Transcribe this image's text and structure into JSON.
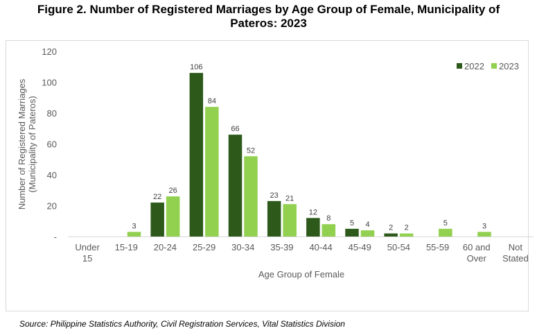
{
  "title_line1": "Figure 2.  Number of Registered Marriages by Age Group of Female, Municipality of",
  "title_line2": "Pateros: 2023",
  "source": "Source: Philippine Statistics Authority, Civil Registration Services, Vital Statistics Division",
  "chart_data": {
    "type": "bar",
    "title": "Figure 2.  Number of Registered Marriages by Age Group of Female, Municipality of Pateros: 2023",
    "xlabel": "Age Group of Female",
    "ylabel_lines": [
      "Number of Registered Marriages",
      "(Municipality of Pateros)"
    ],
    "ylim": [
      0,
      120
    ],
    "yticks": [
      0,
      20,
      40,
      60,
      80,
      100,
      120
    ],
    "ytick_labels": [
      "-",
      "20",
      "40",
      "60",
      "80",
      "100",
      "120"
    ],
    "grid": false,
    "legend": "top-right",
    "categories": [
      [
        "Under",
        "15"
      ],
      [
        "15-19"
      ],
      [
        "20-24"
      ],
      [
        "25-29"
      ],
      [
        "30-34"
      ],
      [
        "35-39"
      ],
      [
        "40-44"
      ],
      [
        "45-49"
      ],
      [
        "50-54"
      ],
      [
        "55-59"
      ],
      [
        "60 and",
        "Over"
      ],
      [
        "Not",
        "Stated"
      ]
    ],
    "series": [
      {
        "name": "2022",
        "color": "#2d5a1b",
        "values": [
          0,
          0,
          22,
          106,
          66,
          23,
          12,
          5,
          2,
          0,
          0,
          0
        ]
      },
      {
        "name": "2023",
        "color": "#92d050",
        "values": [
          0,
          3,
          26,
          84,
          52,
          21,
          8,
          4,
          2,
          5,
          3,
          0
        ]
      }
    ]
  }
}
